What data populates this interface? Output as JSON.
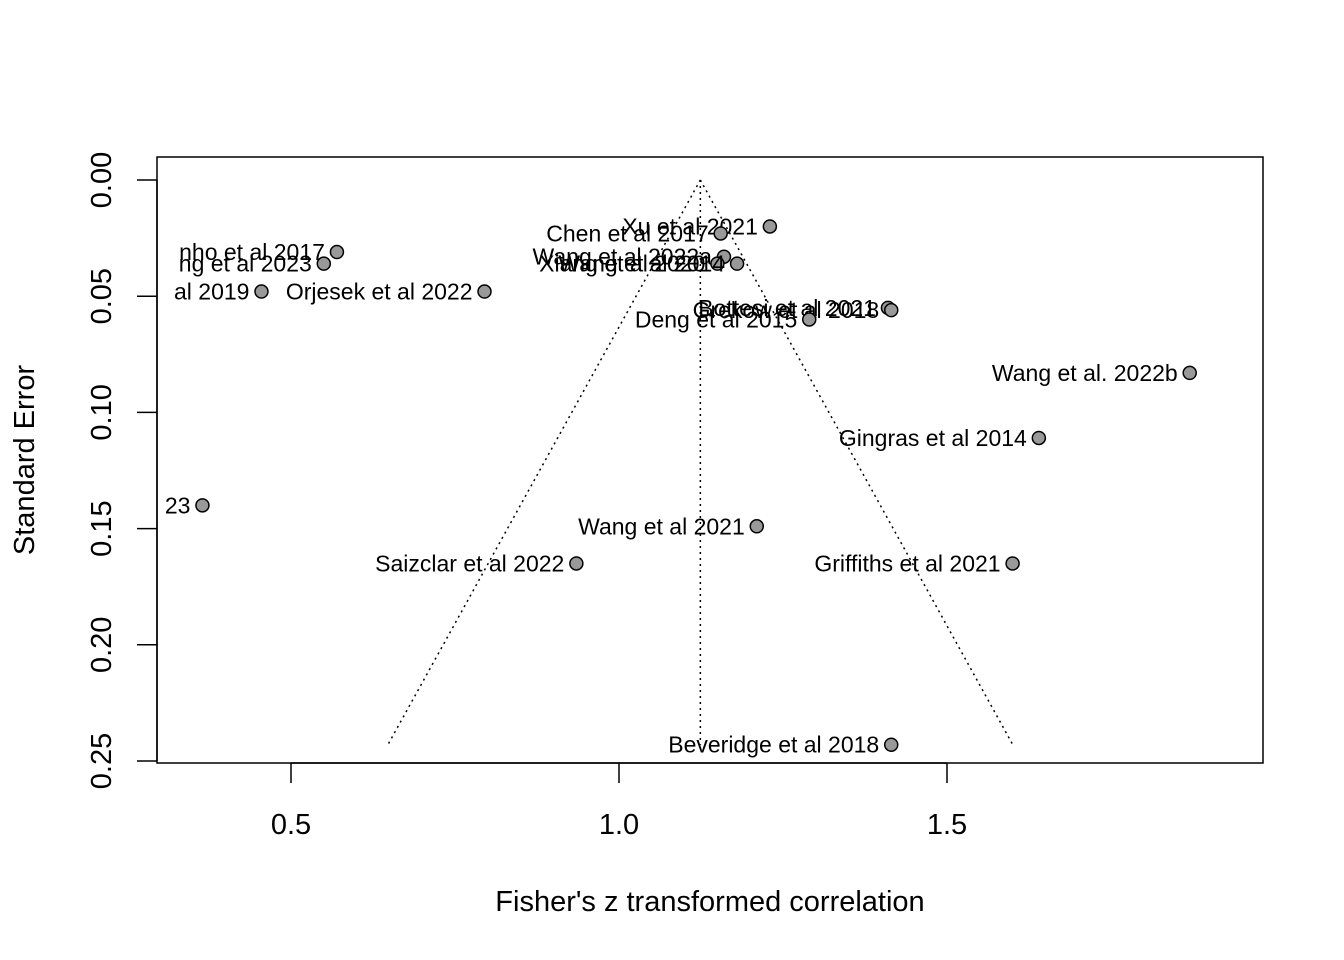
{
  "chart_data": {
    "type": "scatter",
    "subtype": "funnel plot",
    "xlabel": "Fisher's z transformed correlation",
    "ylabel": "Standard Error",
    "xlim": [
      0.3,
      1.99
    ],
    "ylim": [
      0.25,
      0.0
    ],
    "y_reversed": true,
    "x_ticks": [
      "0.5",
      "1.0",
      "1.5"
    ],
    "y_ticks": [
      "0.00",
      "0.05",
      "0.10",
      "0.15",
      "0.20",
      "0.25"
    ],
    "center_estimate": 1.124,
    "funnel": {
      "se_max": 0.243,
      "style": "dotted"
    },
    "point_color": "#999999",
    "point_stroke": "#000000",
    "points": [
      {
        "label": "Xu et al 2021",
        "x": 1.23,
        "y": 0.02
      },
      {
        "label": "Chen et al 2017",
        "x": 1.155,
        "y": 0.023
      },
      {
        "label": "Wang et al 2022a",
        "x": 1.16,
        "y": 0.033
      },
      {
        "label": "Xiang et al 2020",
        "x": 1.15,
        "y": 0.036
      },
      {
        "label": "Wang et al 2014",
        "x": 1.18,
        "y": 0.036
      },
      {
        "label": "nho et al 2017",
        "x": 0.57,
        "y": 0.031
      },
      {
        "label": "ng et al 2023",
        "x": 0.55,
        "y": 0.036
      },
      {
        "label": "al 2019",
        "x": 0.455,
        "y": 0.048
      },
      {
        "label": "Orjesek et al 2022",
        "x": 0.795,
        "y": 0.048
      },
      {
        "label": "Bottesi et al 2021",
        "x": 1.41,
        "y": 0.055
      },
      {
        "label": "Grekow et al 2018",
        "x": 1.415,
        "y": 0.056
      },
      {
        "label": "Deng et al 2015",
        "x": 1.29,
        "y": 0.06
      },
      {
        "label": "Wang et al. 2022b",
        "x": 1.87,
        "y": 0.083
      },
      {
        "label": "Gingras et al 2014",
        "x": 1.64,
        "y": 0.111
      },
      {
        "label": "23",
        "x": 0.365,
        "y": 0.14
      },
      {
        "label": "Wang et al 2021",
        "x": 1.21,
        "y": 0.149
      },
      {
        "label": "Saizclar et al 2022",
        "x": 0.935,
        "y": 0.165
      },
      {
        "label": "Griffiths et al 2021",
        "x": 1.6,
        "y": 0.165
      },
      {
        "label": "Beveridge et al 2018",
        "x": 1.415,
        "y": 0.243
      }
    ]
  }
}
